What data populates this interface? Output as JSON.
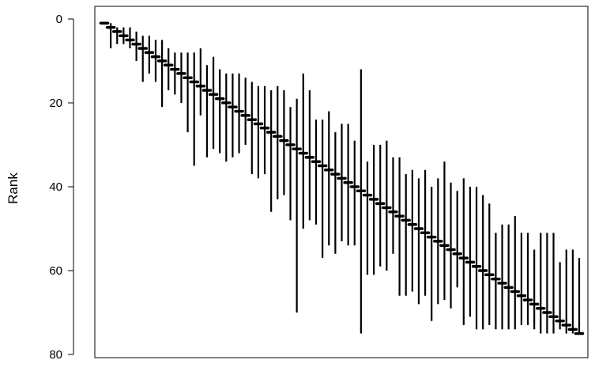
{
  "chart_data": {
    "type": "scatter",
    "title": "",
    "xlabel": "",
    "ylabel": "Rank",
    "ylim": [
      0,
      80
    ],
    "y_reversed": true,
    "yticks": [
      0,
      20,
      40,
      60,
      80
    ],
    "grid": false,
    "series": [
      {
        "x": [
          1,
          2,
          3,
          4,
          5,
          6,
          7,
          8,
          9,
          10,
          11,
          12,
          13,
          14,
          15,
          16,
          17,
          18,
          19,
          20,
          21,
          22,
          23,
          24,
          25,
          26,
          27,
          28,
          29,
          30,
          31,
          32,
          33,
          34,
          35,
          36,
          37,
          38,
          39,
          40,
          41,
          42,
          43,
          44,
          45,
          46,
          47,
          48,
          49,
          50,
          51,
          52,
          53,
          54,
          55,
          56,
          57,
          58,
          59,
          60,
          61,
          62,
          63,
          64,
          65,
          66,
          67,
          68,
          69,
          70,
          71,
          72,
          73,
          74,
          75
        ],
        "rank": [
          1,
          2,
          3,
          4,
          5,
          6,
          7,
          8,
          9,
          10,
          11,
          12,
          13,
          14,
          15,
          16,
          17,
          18,
          19,
          20,
          21,
          22,
          23,
          24,
          25,
          26,
          27,
          28,
          29,
          30,
          31,
          32,
          33,
          34,
          35,
          36,
          37,
          38,
          39,
          40,
          41,
          42,
          43,
          44,
          45,
          46,
          47,
          48,
          49,
          50,
          51,
          52,
          53,
          54,
          55,
          56,
          57,
          58,
          59,
          60,
          61,
          62,
          63,
          64,
          65,
          66,
          67,
          68,
          69,
          70,
          71,
          72,
          73,
          74,
          75
        ],
        "lower": [
          1,
          1,
          2,
          2,
          2,
          3,
          4,
          4,
          5,
          5,
          7,
          8,
          8,
          8,
          8,
          7,
          11,
          9,
          12,
          13,
          13,
          13,
          14,
          15,
          16,
          16,
          17,
          16,
          17,
          21,
          19,
          13,
          17,
          24,
          24,
          22,
          27,
          25,
          25,
          29,
          12,
          34,
          30,
          30,
          29,
          33,
          33,
          37,
          36,
          38,
          36,
          40,
          38,
          34,
          39,
          41,
          38,
          40,
          40,
          42,
          44,
          51,
          49,
          49,
          47,
          51,
          51,
          55,
          51,
          51,
          51,
          58,
          55,
          55,
          57
        ],
        "upper": [
          1,
          7,
          6,
          6,
          7,
          10,
          15,
          13,
          15,
          21,
          17,
          18,
          20,
          27,
          35,
          23,
          33,
          31,
          32,
          34,
          33,
          32,
          30,
          37,
          38,
          37,
          46,
          43,
          42,
          48,
          70,
          50,
          48,
          49,
          57,
          54,
          56,
          53,
          54,
          54,
          75,
          61,
          61,
          59,
          60,
          56,
          66,
          66,
          65,
          68,
          66,
          72,
          68,
          67,
          69,
          64,
          73,
          71,
          74,
          74,
          73,
          74,
          74,
          74,
          74,
          73,
          73,
          74,
          75,
          75,
          75,
          74,
          75,
          75,
          75
        ]
      }
    ]
  }
}
